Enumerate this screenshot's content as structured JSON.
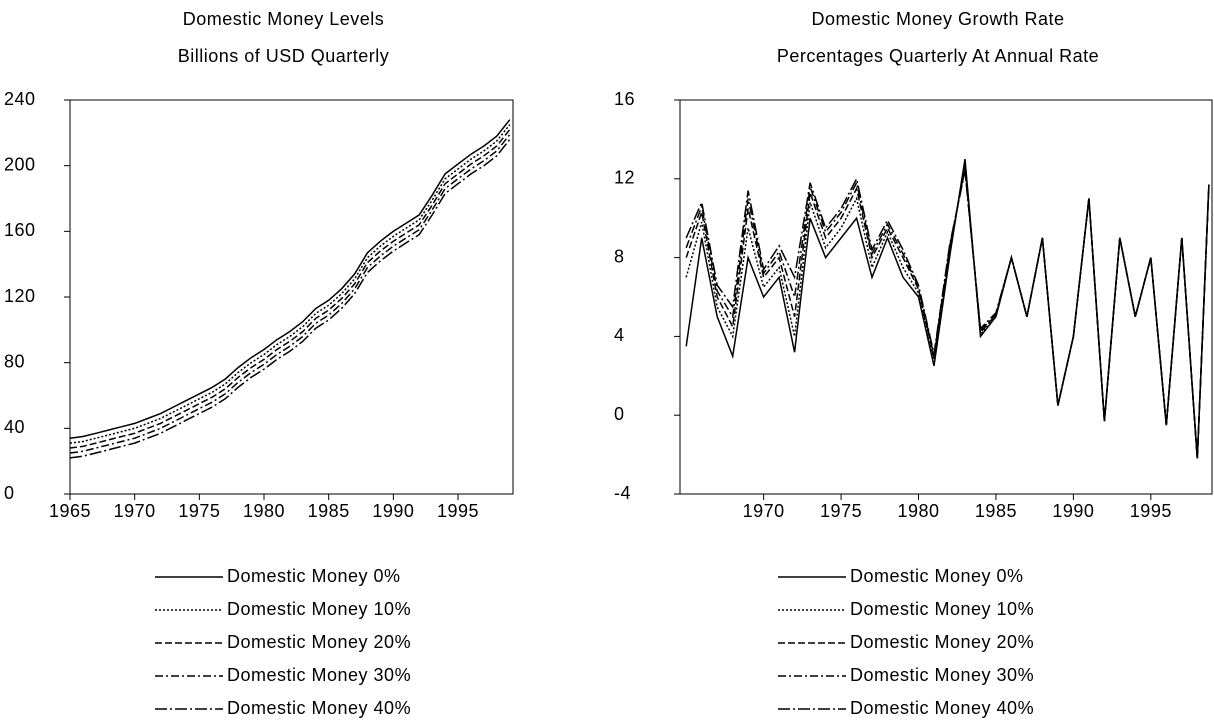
{
  "chart_data": [
    {
      "type": "line",
      "title": "Domestic Money Levels",
      "subtitle": "Billions of USD Quarterly",
      "x": [
        1965,
        1966,
        1967,
        1968,
        1969,
        1970,
        1971,
        1972,
        1973,
        1974,
        1975,
        1976,
        1977,
        1978,
        1979,
        1980,
        1981,
        1982,
        1983,
        1984,
        1985,
        1986,
        1987,
        1988,
        1989,
        1990,
        1991,
        1992,
        1993,
        1994,
        1995,
        1996,
        1997,
        1998,
        1999
      ],
      "xlim": [
        1965,
        1999.25
      ],
      "xticks": [
        1965,
        1970,
        1975,
        1980,
        1985,
        1990,
        1995
      ],
      "ylim": [
        0,
        240
      ],
      "yticks": [
        0,
        40,
        80,
        120,
        160,
        200,
        240
      ],
      "series": [
        {
          "name": "Domestic Money 0%",
          "color": "#000000",
          "dash": "none",
          "values": [
            34,
            35,
            37,
            39,
            41,
            43,
            46,
            49,
            53,
            57,
            61,
            65,
            70,
            77,
            83,
            88,
            94,
            99,
            105,
            113,
            118,
            125,
            134,
            147,
            154,
            160,
            165,
            170,
            182,
            195,
            201,
            207,
            212,
            218,
            228
          ]
        },
        {
          "name": "Domestic Money 10%",
          "color": "#000000",
          "dash": "2,2",
          "values": [
            31,
            32,
            34,
            36,
            38,
            40,
            43,
            46,
            50,
            54,
            58,
            62,
            67,
            74,
            80,
            85,
            91,
            96,
            102,
            110,
            115,
            122,
            131,
            144,
            151,
            157,
            162,
            167,
            179,
            192,
            198,
            204,
            209,
            215,
            225
          ]
        },
        {
          "name": "Domestic Money 20%",
          "color": "#000000",
          "dash": "7,3",
          "values": [
            28,
            29,
            31,
            33,
            35,
            37,
            40,
            43,
            47,
            51,
            55,
            59,
            64,
            71,
            77,
            82,
            88,
            93,
            99,
            107,
            112,
            119,
            128,
            141,
            148,
            154,
            159,
            164,
            176,
            189,
            195,
            201,
            206,
            212,
            222
          ]
        },
        {
          "name": "Domestic Money 30%",
          "color": "#000000",
          "dash": "8,3,2,3",
          "values": [
            25,
            26,
            28,
            30,
            32,
            34,
            37,
            40,
            44,
            48,
            52,
            56,
            61,
            68,
            74,
            79,
            85,
            90,
            96,
            104,
            109,
            116,
            125,
            138,
            145,
            151,
            156,
            161,
            173,
            186,
            192,
            198,
            203,
            209,
            219
          ]
        },
        {
          "name": "Domestic Money 40%",
          "color": "#000000",
          "dash": "12,3,2,3",
          "values": [
            22,
            23,
            25,
            27,
            29,
            31,
            34,
            37,
            41,
            45,
            49,
            53,
            58,
            65,
            71,
            76,
            82,
            87,
            93,
            101,
            106,
            113,
            122,
            135,
            142,
            148,
            153,
            158,
            170,
            183,
            189,
            195,
            200,
            206,
            216
          ]
        }
      ]
    },
    {
      "type": "line",
      "title": "Domestic Money Growth Rate",
      "subtitle": "Percentages Quarterly At Annual Rate",
      "x": [
        1965,
        1966,
        1967,
        1968,
        1969,
        1970,
        1971,
        1972,
        1973,
        1974,
        1975,
        1976,
        1977,
        1978,
        1979,
        1980,
        1981,
        1982,
        1983,
        1984,
        1985,
        1986,
        1987,
        1988,
        1989,
        1990,
        1991,
        1992,
        1993,
        1994,
        1995,
        1996,
        1997,
        1998,
        1998.75
      ],
      "xlim": [
        1964.6,
        1998.95
      ],
      "xticks": [
        1970,
        1975,
        1980,
        1985,
        1990,
        1995
      ],
      "ylim": [
        -4,
        16
      ],
      "yticks": [
        -4,
        0,
        4,
        8,
        12,
        16
      ],
      "series": [
        {
          "name": "Domestic Money 0%",
          "color": "#000000",
          "dash": "none",
          "values": [
            3.5,
            9,
            5,
            3,
            8,
            6,
            7,
            3.2,
            10,
            8,
            9,
            10,
            7,
            9,
            7,
            6,
            2.5,
            8,
            13,
            4,
            5,
            8,
            5,
            9,
            0.5,
            4,
            11,
            -0.3,
            9,
            5,
            8,
            -0.5,
            9,
            -2.2,
            11.7
          ]
        },
        {
          "name": "Domestic Money 10%",
          "color": "#000000",
          "dash": "2,2",
          "values": [
            7,
            9.8,
            5.5,
            4,
            9.5,
            6.5,
            7.5,
            4,
            10.8,
            8.5,
            9.5,
            11,
            7.5,
            9.3,
            7.5,
            6.2,
            2.7,
            8.2,
            12.8,
            4.1,
            5,
            8,
            5,
            9,
            0.5,
            4,
            11,
            -0.3,
            9,
            5,
            8,
            -0.5,
            9,
            -2.2,
            11.7
          ]
        },
        {
          "name": "Domestic Money 20%",
          "color": "#000000",
          "dash": "7,3",
          "values": [
            8,
            10.3,
            6,
            4.5,
            10.5,
            7,
            8,
            5,
            11.3,
            9,
            10,
            11.5,
            8,
            9.5,
            8,
            6.4,
            2.9,
            8.4,
            12.6,
            4.2,
            5.1,
            8,
            5,
            9,
            0.5,
            4,
            11,
            -0.3,
            9,
            5,
            8,
            -0.5,
            9,
            -2.2,
            11.7
          ]
        },
        {
          "name": "Domestic Money 30%",
          "color": "#000000",
          "dash": "8,3,2,3",
          "values": [
            8.5,
            10.6,
            6.3,
            5,
            11,
            7.2,
            8.3,
            6,
            11.6,
            9.3,
            10.3,
            11.8,
            8.2,
            9.7,
            8.2,
            6.5,
            3,
            8.5,
            12.5,
            4.3,
            5.1,
            8,
            5,
            9,
            0.5,
            4,
            11,
            -0.3,
            9,
            5,
            8,
            -0.5,
            9,
            -2.2,
            11.7
          ]
        },
        {
          "name": "Domestic Money 40%",
          "color": "#000000",
          "dash": "12,3,2,3",
          "values": [
            9,
            10.8,
            6.6,
            5.5,
            11.4,
            7.4,
            8.6,
            7,
            11.8,
            9.5,
            10.5,
            12,
            8.4,
            9.9,
            8.4,
            6.6,
            3.1,
            8.6,
            12.4,
            4.4,
            5.2,
            8,
            5,
            9,
            0.5,
            4,
            11,
            -0.3,
            9,
            5,
            8,
            -0.5,
            9,
            -2.2,
            11.7
          ]
        }
      ]
    }
  ]
}
